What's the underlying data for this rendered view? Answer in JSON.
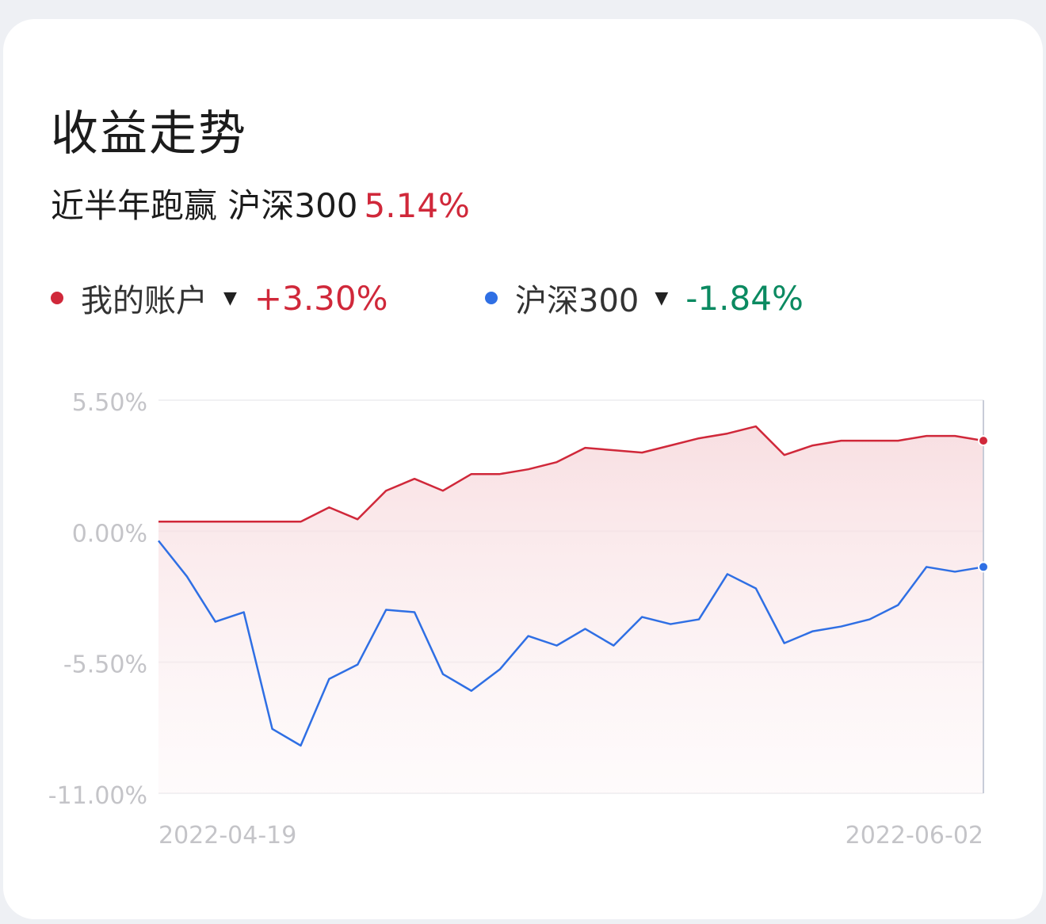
{
  "header": {
    "title": "收益走势",
    "subtitle": {
      "label": "近半年跑赢 沪深300",
      "excess": "5.14%"
    }
  },
  "legend": [
    {
      "name": "我的账户",
      "value": "+3.30%",
      "color": "#d0283a",
      "value_color": "#d0283a",
      "dropdown_icon": "triangle-down-icon"
    },
    {
      "name": "沪深300",
      "value": "-1.84%",
      "color": "#2f6fe4",
      "value_color": "#0b8a61",
      "dropdown_icon": "triangle-down-icon"
    }
  ],
  "chart_data": {
    "type": "line",
    "ylim": [
      -11.0,
      5.5
    ],
    "y_ticks": [
      {
        "value": 5.5,
        "label": "5.50%"
      },
      {
        "value": 0.0,
        "label": "0.00%"
      },
      {
        "value": -5.5,
        "label": "-5.50%"
      },
      {
        "value": -11.0,
        "label": "-11.00%"
      }
    ],
    "x_labels": [
      {
        "index": 0,
        "label": "2022-04-19"
      },
      {
        "index": 29,
        "label": "2022-06-02"
      }
    ],
    "series": [
      {
        "name": "我的账户",
        "color": "#d0283a",
        "values": [
          0.4,
          0.4,
          0.4,
          0.4,
          0.4,
          0.4,
          1.0,
          0.5,
          1.7,
          2.2,
          1.7,
          2.4,
          2.4,
          2.6,
          2.9,
          3.5,
          3.4,
          3.3,
          3.6,
          3.9,
          4.1,
          4.4,
          3.2,
          3.6,
          3.8,
          3.8,
          3.8,
          4.0,
          4.0,
          3.8
        ]
      },
      {
        "name": "沪深300",
        "color": "#2f6fe4",
        "values": [
          -0.4,
          -1.9,
          -3.8,
          -3.4,
          -8.3,
          -9.0,
          -6.2,
          -5.6,
          -3.3,
          -3.4,
          -6.0,
          -6.7,
          -5.8,
          -4.4,
          -4.8,
          -4.1,
          -4.8,
          -3.6,
          -3.9,
          -3.7,
          -1.8,
          -2.4,
          -4.7,
          -4.2,
          -4.0,
          -3.7,
          -3.1,
          -1.5,
          -1.7,
          -1.5
        ]
      }
    ]
  }
}
